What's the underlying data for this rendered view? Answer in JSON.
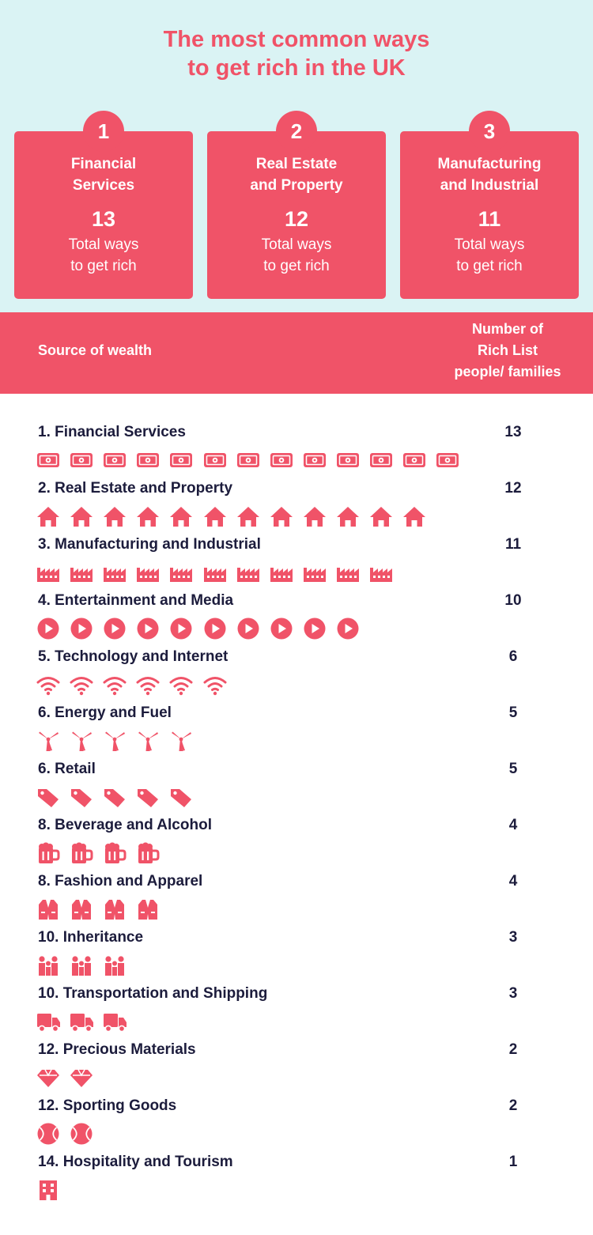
{
  "title": [
    "The most common ways",
    "to get rich in the UK"
  ],
  "cards": [
    {
      "rank": "1",
      "name": "Financial\nServices",
      "value": "13",
      "caption": "Total ways\nto get rich"
    },
    {
      "rank": "2",
      "name": "Real Estate\nand Property",
      "value": "12",
      "caption": "Total ways\nto get rich"
    },
    {
      "rank": "3",
      "name": "Manufacturing\nand Industrial",
      "value": "11",
      "caption": "Total ways\nto get rich"
    }
  ],
  "table_header": {
    "source": "Source of wealth",
    "count": "Number of\nRich List\npeople/ families"
  },
  "colors": {
    "accent": "#f05368",
    "band": "#daf3f4",
    "text": "#1c1c3c"
  },
  "chart_data": {
    "type": "table",
    "categories": [
      "1. Financial Services",
      "2. Real Estate and Property",
      "3. Manufacturing and Industrial",
      "4. Entertainment and Media",
      "5. Technology and Internet",
      "6. Energy and Fuel",
      "6. Retail",
      "8. Beverage and Alcohol",
      "8. Fashion and Apparel",
      "10. Inheritance",
      "10. Transportation and Shipping",
      "12. Precious Materials",
      "12. Sporting Goods",
      "14. Hospitality and Tourism"
    ],
    "values": [
      13,
      12,
      11,
      10,
      6,
      5,
      5,
      4,
      4,
      3,
      3,
      2,
      2,
      1
    ],
    "icons": [
      "banknote-icon",
      "house-icon",
      "factory-icon",
      "play-icon",
      "wifi-icon",
      "wind-turbine-icon",
      "tag-icon",
      "beer-mug-icon",
      "vest-icon",
      "family-icon",
      "truck-icon",
      "diamond-icon",
      "ball-icon",
      "hotel-icon"
    ]
  }
}
